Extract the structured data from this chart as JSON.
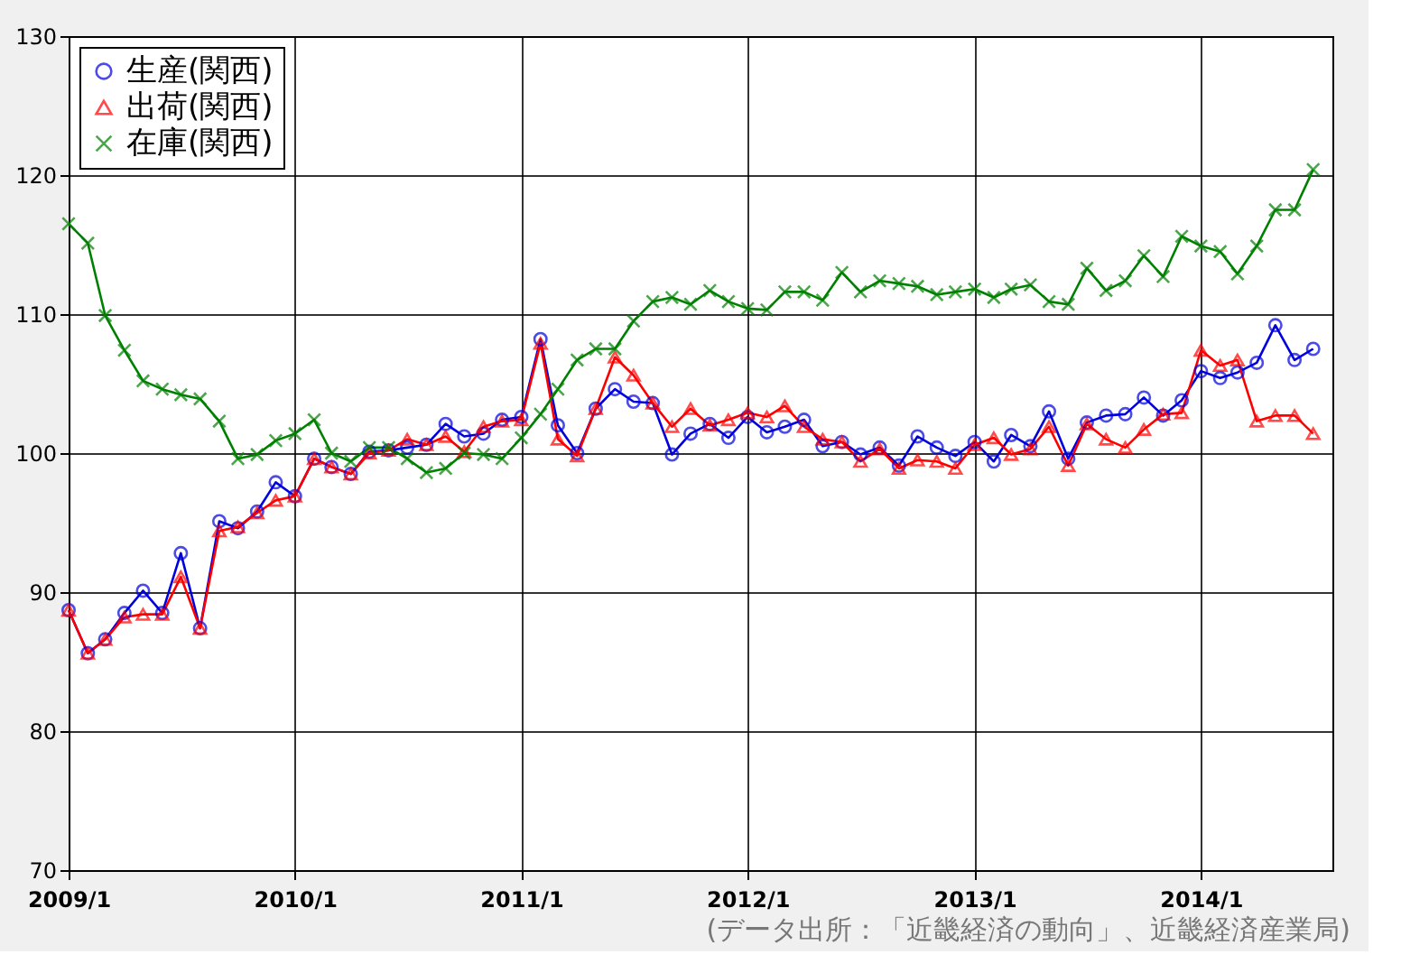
{
  "chart_data": {
    "type": "line",
    "x": [
      "2009-01",
      "2009-02",
      "2009-03",
      "2009-04",
      "2009-05",
      "2009-06",
      "2009-07",
      "2009-08",
      "2009-09",
      "2009-10",
      "2009-11",
      "2009-12",
      "2010-01",
      "2010-02",
      "2010-03",
      "2010-04",
      "2010-05",
      "2010-06",
      "2010-07",
      "2010-08",
      "2010-09",
      "2010-10",
      "2010-11",
      "2010-12",
      "2011-01",
      "2011-02",
      "2011-03",
      "2011-04",
      "2011-05",
      "2011-06",
      "2011-07",
      "2011-08",
      "2011-09",
      "2011-10",
      "2011-11",
      "2011-12",
      "2012-01",
      "2012-02",
      "2012-03",
      "2012-04",
      "2012-05",
      "2012-06",
      "2012-07",
      "2012-08",
      "2012-09",
      "2012-10",
      "2012-11",
      "2012-12",
      "2013-01",
      "2013-02",
      "2013-03",
      "2013-04",
      "2013-05",
      "2013-06",
      "2013-07",
      "2013-08",
      "2013-09",
      "2013-10",
      "2013-11",
      "2013-12",
      "2014-01",
      "2014-02",
      "2014-03",
      "2014-04",
      "2014-05",
      "2014-06",
      "2014-07"
    ],
    "series": [
      {
        "name": "生産(関西)",
        "color": "#0000dd",
        "marker": "circle",
        "values": [
          88.7,
          85.6,
          86.6,
          88.5,
          90.1,
          88.5,
          92.8,
          87.4,
          95.1,
          94.6,
          95.8,
          97.9,
          96.9,
          99.6,
          99.0,
          98.5,
          100.1,
          100.2,
          100.4,
          100.6,
          102.1,
          101.2,
          101.4,
          102.4,
          102.6,
          108.2,
          102.0,
          100.0,
          103.2,
          104.6,
          103.7,
          103.6,
          99.9,
          101.4,
          102.1,
          101.1,
          102.6,
          101.5,
          101.9,
          102.4,
          100.5,
          100.8,
          99.9,
          100.4,
          99.1,
          101.2,
          100.4,
          99.8,
          100.8,
          99.4,
          101.3,
          100.5,
          103.0,
          99.6,
          102.2,
          102.7,
          102.8,
          104.0,
          102.7,
          103.8,
          105.9,
          105.4,
          105.8,
          106.5,
          109.2,
          106.7,
          107.5
        ]
      },
      {
        "name": "出荷(関西)",
        "color": "#ff0000",
        "marker": "triangle",
        "values": [
          88.7,
          85.6,
          86.6,
          88.2,
          88.4,
          88.4,
          91.1,
          87.4,
          94.4,
          94.7,
          95.7,
          96.6,
          96.9,
          99.6,
          99.0,
          98.5,
          100.0,
          100.2,
          101.0,
          100.6,
          101.2,
          100.1,
          101.9,
          102.3,
          102.4,
          107.9,
          101.0,
          99.8,
          103.2,
          106.9,
          105.6,
          103.6,
          101.9,
          103.2,
          102.0,
          102.4,
          102.9,
          102.6,
          103.4,
          101.9,
          101.0,
          100.8,
          99.4,
          100.3,
          98.9,
          99.5,
          99.4,
          98.9,
          100.6,
          101.1,
          99.9,
          100.3,
          101.9,
          99.1,
          102.1,
          101.0,
          100.4,
          101.7,
          102.8,
          102.9,
          107.4,
          106.3,
          106.7,
          102.3,
          102.7,
          102.7,
          101.4
        ]
      },
      {
        "name": "在庫(関西)",
        "color": "#008000",
        "marker": "cross",
        "values": [
          116.5,
          115.1,
          109.9,
          107.4,
          105.2,
          104.6,
          104.2,
          103.9,
          102.3,
          99.6,
          99.9,
          100.9,
          101.4,
          102.4,
          100.0,
          99.4,
          100.4,
          100.4,
          99.6,
          98.6,
          98.9,
          100.0,
          99.9,
          99.6,
          101.1,
          102.8,
          104.6,
          106.7,
          107.5,
          107.5,
          109.5,
          110.9,
          111.2,
          110.7,
          111.7,
          110.9,
          110.4,
          110.3,
          111.6,
          111.6,
          111.0,
          113.0,
          111.6,
          112.4,
          112.2,
          112.0,
          111.4,
          111.6,
          111.8,
          111.2,
          111.8,
          112.1,
          110.9,
          110.7,
          113.3,
          111.7,
          112.4,
          114.2,
          112.7,
          115.6,
          114.9,
          114.5,
          112.9,
          114.9,
          117.5,
          117.5,
          120.4
        ]
      }
    ],
    "xlim": [
      "2009-01",
      "2014-08"
    ],
    "xticks": [
      {
        "value": "2009-01",
        "label": "2009/1"
      },
      {
        "value": "2010-01",
        "label": "2010/1"
      },
      {
        "value": "2011-01",
        "label": "2011/1"
      },
      {
        "value": "2012-01",
        "label": "2012/1"
      },
      {
        "value": "2013-01",
        "label": "2013/1"
      },
      {
        "value": "2014-01",
        "label": "2014/1"
      }
    ],
    "ylim": [
      70,
      130
    ],
    "yticks": [
      70,
      80,
      90,
      100,
      110,
      120,
      130
    ],
    "grid": true,
    "legend": "top left",
    "line_style": "solid",
    "annotations": [
      "(データ出所：「近畿経済の動向」、近畿経済産業局)"
    ]
  }
}
